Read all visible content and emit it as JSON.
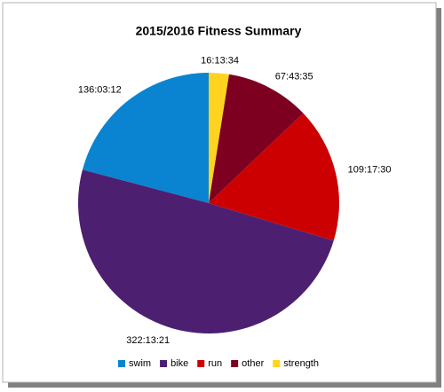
{
  "chart_data": {
    "type": "pie",
    "title": "2015/2016 Fitness Summary",
    "categories": [
      "swim",
      "bike",
      "run",
      "other",
      "strength"
    ],
    "values": [
      489792,
      1160001,
      393450,
      243815,
      58414
    ],
    "value_labels": [
      "136:03:12",
      "322:13:21",
      "109:17:30",
      "67:43:35",
      "16:13:34"
    ],
    "colors": [
      "#0a84d0",
      "#4d1f70",
      "#cc0000",
      "#7e0021",
      "#ffd320"
    ],
    "legend": "bottom"
  }
}
